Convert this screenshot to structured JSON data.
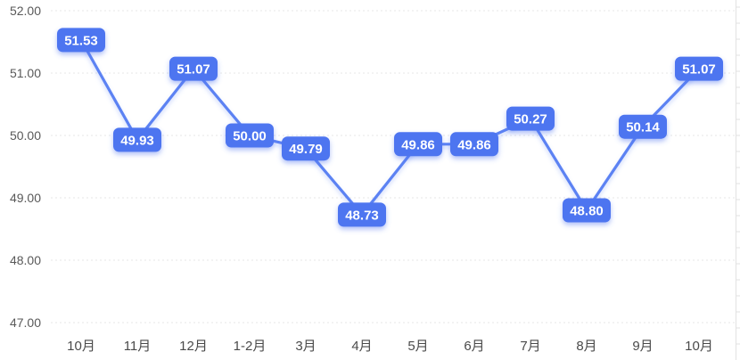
{
  "chart_data": {
    "type": "line",
    "title": "",
    "xlabel": "",
    "ylabel": "",
    "categories": [
      "10月",
      "11月",
      "12月",
      "1-2月",
      "3月",
      "4月",
      "5月",
      "6月",
      "7月",
      "8月",
      "9月",
      "10月"
    ],
    "values": [
      51.53,
      49.93,
      51.07,
      50.0,
      49.79,
      48.73,
      49.86,
      49.86,
      50.27,
      48.8,
      50.14,
      51.07
    ],
    "point_labels": [
      "51.53",
      "49.93",
      "51.07",
      "50.00",
      "49.79",
      "48.73",
      "49.86",
      "49.86",
      "50.27",
      "48.80",
      "50.14",
      "51.07"
    ],
    "y_tick_labels": [
      "52.00",
      "51.00",
      "50.00",
      "49.00",
      "48.00",
      "47.00"
    ],
    "y_tick_values": [
      52,
      51,
      50,
      49,
      48,
      47
    ],
    "ylim": [
      47,
      52
    ],
    "grid": "horizontal-dotted",
    "legend": "none",
    "colors": {
      "line": "#5b82f3",
      "badge_background": "#4d74f0",
      "badge_text": "#ffffff",
      "badge_shadow": "rgba(77,116,240,0.45)",
      "y_axis_text": "#595959",
      "x_axis_text": "#4a4a4a",
      "gridline": "#e7e7e7",
      "right_axis_line": "#e2e2e2",
      "background": "#ffffff"
    }
  }
}
